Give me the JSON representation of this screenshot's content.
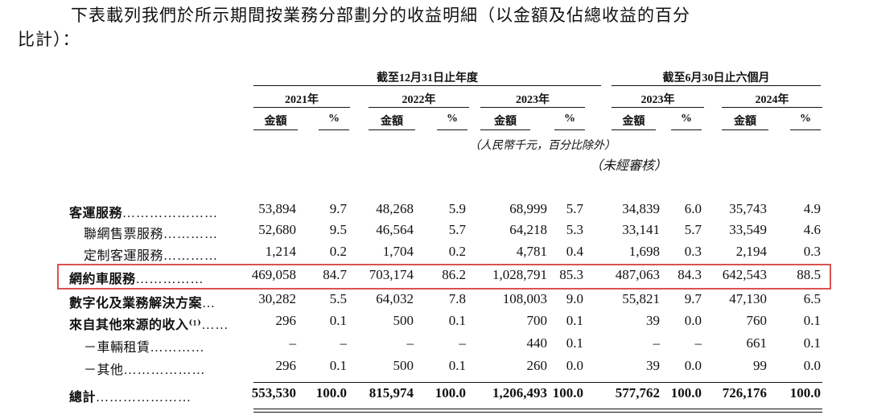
{
  "intro": {
    "line1": "下表載列我們於所示期間按業務分部劃分的收益明細（以金額及佔總收益的百分",
    "line2": "比計）："
  },
  "table": {
    "group_headers": {
      "annual": "截至12月31日止年度",
      "six_month": "截至6月30日止六個月"
    },
    "years": [
      "2021年",
      "2022年",
      "2023年",
      "2023年",
      "2024年"
    ],
    "amount_label": "金額",
    "pct_label": "%",
    "unit_note": "（人民幣千元，百分比除外）",
    "unaudited_note": "（未經審核）",
    "rows": [
      {
        "label": "客運服務",
        "dots": "…………………",
        "values": [
          "53,894",
          "9.7",
          "48,268",
          "5.9",
          "68,999",
          "5.7",
          "34,839",
          "6.0",
          "35,743",
          "4.9"
        ]
      },
      {
        "label": "聯網售票服務",
        "dots": "…………",
        "values": [
          "52,680",
          "9.5",
          "46,564",
          "5.7",
          "64,218",
          "5.3",
          "33,141",
          "5.7",
          "33,549",
          "4.6"
        ]
      },
      {
        "label": "定制客運服務",
        "dots": "…………",
        "values": [
          "1,214",
          "0.2",
          "1,704",
          "0.2",
          "4,781",
          "0.4",
          "1,698",
          "0.3",
          "2,194",
          "0.3"
        ]
      },
      {
        "label": "網約車服務",
        "dots": "……………",
        "values": [
          "469,058",
          "84.7",
          "703,174",
          "86.2",
          "1,028,791",
          "85.3",
          "487,063",
          "84.3",
          "642,543",
          "88.5"
        ]
      },
      {
        "label": "數字化及業務解決方案",
        "dots": "…",
        "values": [
          "30,282",
          "5.5",
          "64,032",
          "7.8",
          "108,003",
          "9.0",
          "55,821",
          "9.7",
          "47,130",
          "6.5"
        ]
      },
      {
        "label": "來自其他來源的收入⁽¹⁾",
        "dots": "……",
        "values": [
          "296",
          "0.1",
          "500",
          "0.1",
          "700",
          "0.1",
          "39",
          "0.0",
          "760",
          "0.1"
        ]
      },
      {
        "label": "－車輛租賃",
        "dots": "…………",
        "values": [
          "–",
          "–",
          "–",
          "–",
          "440",
          "0.1",
          "–",
          "–",
          "661",
          "0.1"
        ]
      },
      {
        "label": "－其他",
        "dots": "………………",
        "values": [
          "296",
          "0.1",
          "500",
          "0.1",
          "260",
          "0.0",
          "39",
          "0.0",
          "99",
          "0.0"
        ]
      },
      {
        "label": "總計",
        "dots": "…………………",
        "values": [
          "553,530",
          "100.0",
          "815,974",
          "100.0",
          "1,206,493",
          "100.0",
          "577,762",
          "100.0",
          "726,176",
          "100.0"
        ]
      }
    ]
  }
}
